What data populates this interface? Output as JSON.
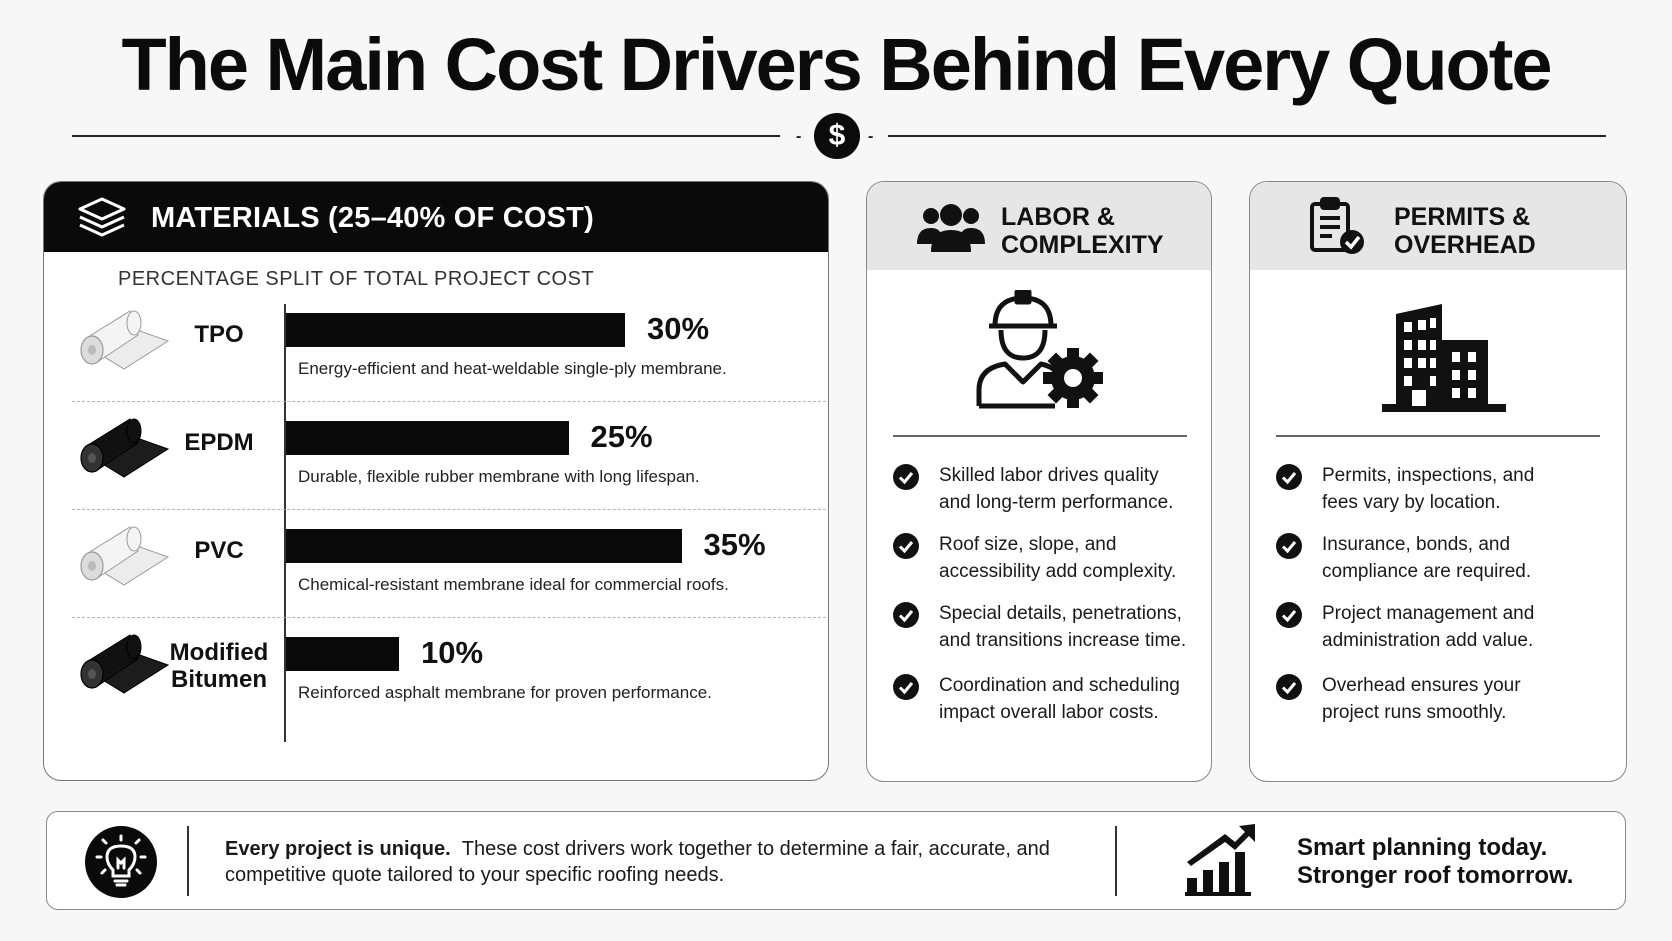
{
  "title": "The Main Cost Drivers Behind Every Quote",
  "divider_icon": "dollar-icon",
  "materials": {
    "header": "MATERIALS (25–40% OF COST)",
    "icon": "layers-icon",
    "subtitle": "PERCENTAGE SPLIT OF TOTAL PROJECT COST",
    "rows": [
      {
        "name_line1": "TPO",
        "name_line2": "",
        "pct": "30%",
        "desc": "Energy-efficient and heat-weldable single-ply membrane.",
        "roll": "light"
      },
      {
        "name_line1": "EPDM",
        "name_line2": "",
        "pct": "25%",
        "desc": "Durable, flexible rubber membrane with long lifespan.",
        "roll": "dark"
      },
      {
        "name_line1": "PVC",
        "name_line2": "",
        "pct": "35%",
        "desc": "Chemical-resistant membrane ideal for commercial roofs.",
        "roll": "light"
      },
      {
        "name_line1": "Modified",
        "name_line2": "Bitumen",
        "pct": "10%",
        "desc": "Reinforced asphalt membrane for proven performance.",
        "roll": "dark"
      }
    ]
  },
  "chart_data": {
    "type": "bar",
    "title": "PERCENTAGE SPLIT OF TOTAL PROJECT COST",
    "categories": [
      "TPO",
      "EPDM",
      "PVC",
      "Modified Bitumen"
    ],
    "values": [
      30,
      25,
      35,
      10
    ],
    "ylim": [
      0,
      40
    ]
  },
  "labor": {
    "title_line1": "LABOR &",
    "title_line2": "COMPLEXITY",
    "icon": "people-icon",
    "illustration": "worker-gear-icon",
    "items": [
      {
        "l1": "Skilled labor drives quality",
        "l2": "and long-term performance."
      },
      {
        "l1": "Roof size, slope, and",
        "l2": "accessibility add complexity."
      },
      {
        "l1": "Special details, penetrations,",
        "l2": "and transitions increase time."
      },
      {
        "l1": "Coordination and scheduling",
        "l2": "impact overall labor costs."
      }
    ]
  },
  "permits": {
    "title_line1": "PERMITS &",
    "title_line2": "OVERHEAD",
    "icon": "clipboard-check-icon",
    "illustration": "building-icon",
    "items": [
      {
        "l1": "Permits, inspections, and",
        "l2": "fees vary by location."
      },
      {
        "l1": "Insurance, bonds, and",
        "l2": "compliance are required."
      },
      {
        "l1": "Project management and",
        "l2": "administration add value."
      },
      {
        "l1": "Overhead ensures your",
        "l2": "project runs smoothly."
      }
    ]
  },
  "banner": {
    "bold": "Every project is unique.",
    "text1": "These cost drivers work together to determine a fair, accurate, and",
    "text2": "competitive quote tailored to your specific roofing needs.",
    "cta1": "Smart planning today.",
    "cta2": "Stronger roof tomorrow."
  }
}
